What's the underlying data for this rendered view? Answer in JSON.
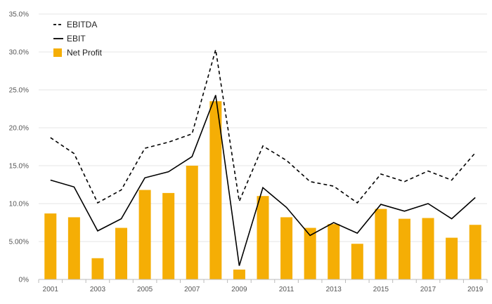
{
  "chart_data": {
    "type": "bar+line",
    "categories": [
      "2001",
      "2002",
      "2003",
      "2004",
      "2005",
      "2006",
      "2007",
      "2008",
      "2009",
      "2010",
      "2011",
      "2012",
      "2013",
      "2014",
      "2015",
      "2016",
      "2017",
      "2018",
      "2019"
    ],
    "x_tick_labels": [
      "2001",
      "2003",
      "2005",
      "2007",
      "2009",
      "2011",
      "2013",
      "2015",
      "2017",
      "2019"
    ],
    "y_tick_labels": [
      "0%",
      "5.00%",
      "10.0%",
      "15.0%",
      "20.0%",
      "25.0%",
      "30.0%",
      "35.0%"
    ],
    "y_ticks": [
      0,
      5,
      10,
      15,
      20,
      25,
      30,
      35
    ],
    "ylim": [
      0,
      35
    ],
    "grid": true,
    "legend_position": "top-left",
    "series": [
      {
        "name": "EBITDA",
        "type": "line",
        "style": "dashed",
        "color": "#000000",
        "values": [
          18.7,
          16.6,
          10.1,
          11.8,
          17.3,
          18.1,
          19.2,
          30.3,
          10.3,
          17.6,
          15.7,
          12.9,
          12.3,
          10.1,
          13.9,
          12.9,
          14.3,
          13.1,
          16.7
        ]
      },
      {
        "name": "EBIT",
        "type": "line",
        "style": "solid",
        "color": "#000000",
        "values": [
          13.1,
          12.2,
          6.4,
          8.0,
          13.4,
          14.2,
          16.2,
          24.3,
          1.8,
          12.1,
          9.5,
          5.8,
          7.5,
          6.1,
          9.9,
          9.0,
          10.0,
          8.0,
          10.8
        ]
      },
      {
        "name": "Net Profit",
        "type": "bar",
        "color": "#F5AE05",
        "values": [
          8.7,
          8.2,
          2.8,
          6.8,
          11.8,
          11.4,
          15.0,
          23.5,
          1.3,
          11.0,
          8.2,
          6.8,
          7.3,
          4.7,
          9.3,
          8.0,
          8.1,
          5.5,
          7.2
        ]
      }
    ]
  }
}
